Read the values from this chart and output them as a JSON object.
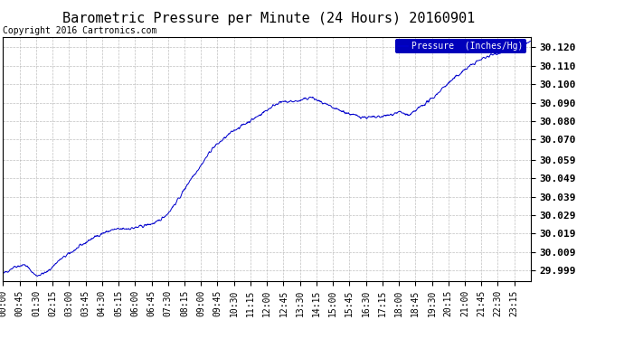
{
  "title": "Barometric Pressure per Minute (24 Hours) 20160901",
  "copyright": "Copyright 2016 Cartronics.com",
  "legend_label": "Pressure  (Inches/Hg)",
  "line_color": "#0000cc",
  "background_color": "#ffffff",
  "grid_color": "#b0b0b0",
  "yticks": [
    29.999,
    30.009,
    30.019,
    30.029,
    30.039,
    30.049,
    30.059,
    30.07,
    30.08,
    30.09,
    30.1,
    30.11,
    30.12
  ],
  "ylim": [
    29.993,
    30.1255
  ],
  "xtick_labels": [
    "00:00",
    "00:45",
    "01:30",
    "02:15",
    "03:00",
    "03:45",
    "04:30",
    "05:15",
    "06:00",
    "06:45",
    "07:30",
    "08:15",
    "09:00",
    "09:45",
    "10:30",
    "11:15",
    "12:00",
    "12:45",
    "13:30",
    "14:15",
    "15:00",
    "15:45",
    "16:30",
    "17:15",
    "18:00",
    "18:45",
    "19:30",
    "20:15",
    "21:00",
    "21:45",
    "22:30",
    "23:15"
  ],
  "title_fontsize": 11,
  "copyright_fontsize": 7,
  "tick_fontsize": 7,
  "ytick_fontsize": 8,
  "legend_fontsize": 7,
  "breakpoints": [
    0,
    30,
    60,
    90,
    120,
    150,
    180,
    210,
    240,
    270,
    300,
    360,
    420,
    450,
    480,
    510,
    540,
    570,
    630,
    690,
    750,
    810,
    840,
    870,
    900,
    930,
    960,
    990,
    1020,
    1050,
    1080,
    1110,
    1140,
    1170,
    1200,
    1230,
    1260,
    1290,
    1320,
    1350,
    1380,
    1410,
    1440
  ],
  "bpvalues": [
    29.997,
    30.001,
    30.002,
    29.996,
    29.998,
    30.004,
    30.008,
    30.012,
    30.016,
    30.019,
    30.021,
    30.022,
    30.025,
    30.03,
    30.038,
    30.048,
    30.056,
    30.065,
    30.075,
    30.082,
    30.09,
    30.091,
    30.093,
    30.09,
    30.087,
    30.085,
    30.083,
    30.082,
    30.082,
    30.083,
    30.085,
    30.083,
    30.088,
    30.092,
    30.098,
    30.103,
    30.108,
    30.112,
    30.115,
    30.117,
    30.119,
    30.121,
    30.123
  ]
}
